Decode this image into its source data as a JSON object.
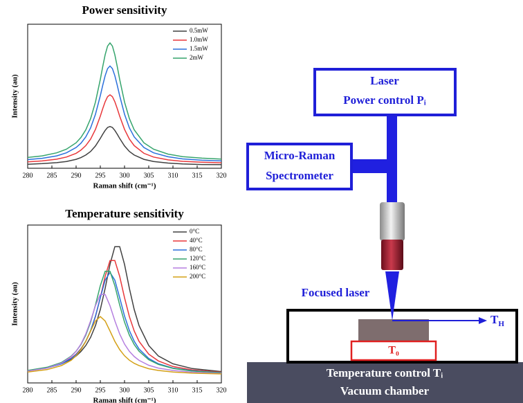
{
  "chart_data": [
    {
      "type": "line",
      "title": "Power sensitivity",
      "xlabel": "Raman shift (cm⁻¹)",
      "ylabel": "Intensity (au)",
      "x": [
        280,
        283,
        286,
        288,
        290,
        291,
        292,
        293,
        294,
        295,
        295.5,
        296,
        296.5,
        297,
        297.5,
        298,
        298.5,
        299,
        300,
        301,
        302,
        304,
        306,
        309,
        312,
        316,
        320
      ],
      "xlim": [
        280,
        320
      ],
      "xticks": [
        280,
        285,
        290,
        295,
        300,
        305,
        310,
        315,
        320
      ],
      "ylim": [
        0,
        100
      ],
      "series": [
        {
          "name": "0.5mW",
          "color": "#404040",
          "values": [
            2.8,
            3.2,
            3.9,
            4.7,
            6.2,
            7.4,
            9.2,
            11.7,
            15.5,
            20.7,
            23.6,
            26.3,
            28.3,
            29,
            28.3,
            26.3,
            23.6,
            20.7,
            15.5,
            11.7,
            9.2,
            6.2,
            4.7,
            3.6,
            3.0,
            2.6,
            2.5
          ]
        },
        {
          "name": "1.0mW",
          "color": "#e8373a",
          "values": [
            4.4,
            5.1,
            6.3,
            7.8,
            10.4,
            12.6,
            15.7,
            20.3,
            27,
            36.2,
            41.4,
            46.2,
            49.7,
            51,
            49.7,
            46.2,
            41.4,
            36.2,
            27,
            20.3,
            15.7,
            10.4,
            7.8,
            5.8,
            4.8,
            4.2,
            3.8
          ]
        },
        {
          "name": "1.5mW",
          "color": "#2a6fdb",
          "values": [
            6,
            6.9,
            8.6,
            10.7,
            14.4,
            17.4,
            21.8,
            28.1,
            37.5,
            50.4,
            57.6,
            64.3,
            69.2,
            71,
            69.2,
            64.3,
            57.6,
            50.4,
            37.5,
            28.1,
            21.8,
            14.4,
            10.7,
            8,
            6.5,
            5.6,
            5.1
          ]
        },
        {
          "name": "2mW",
          "color": "#35a46c",
          "values": [
            7.5,
            8.6,
            10.7,
            13.2,
            17.7,
            21.4,
            26.7,
            34.5,
            46,
            61.7,
            70.6,
            78.8,
            84.8,
            87,
            84.8,
            78.8,
            70.6,
            61.7,
            46,
            34.5,
            26.7,
            17.7,
            13.2,
            9.8,
            8.1,
            7,
            6.4
          ]
        }
      ]
    },
    {
      "type": "line",
      "title": "Temperature sensitivity",
      "xlabel": "Raman shift (cm⁻¹)",
      "ylabel": "Intensity (au)",
      "x": [
        280,
        284,
        287,
        289,
        290,
        291,
        292,
        293,
        294,
        295,
        296,
        297,
        298,
        299,
        300,
        301,
        302,
        303,
        305,
        307,
        310,
        314,
        320
      ],
      "xlim": [
        280,
        320
      ],
      "xticks": [
        280,
        285,
        290,
        295,
        300,
        305,
        310,
        315,
        320
      ],
      "ylim": [
        0,
        100
      ],
      "series": [
        {
          "name": "0°C",
          "color": "#404040",
          "values": [
            7.8,
            9.6,
            12.1,
            15,
            17,
            19.9,
            23.7,
            28.9,
            36.3,
            46.5,
            59.9,
            75.1,
            86.3,
            86.3,
            75.1,
            59.9,
            46.5,
            36.3,
            23.7,
            17,
            12.1,
            9.1,
            7.2
          ]
        },
        {
          "name": "40°C",
          "color": "#e8373a",
          "values": [
            7.8,
            9.7,
            12.4,
            15.7,
            18.2,
            21.7,
            26.3,
            32.9,
            42,
            54,
            67.5,
            77.5,
            77.5,
            67.5,
            54,
            42,
            32.9,
            26.3,
            18.2,
            13.9,
            10.4,
            8.2,
            6.8
          ]
        },
        {
          "name": "80°C",
          "color": "#2a6fdb",
          "values": [
            7.7,
            9.4,
            12.1,
            15.5,
            18,
            21.5,
            26.4,
            33.2,
            42.4,
            54,
            65.1,
            70,
            65.1,
            54,
            42.4,
            33.2,
            26.4,
            21.5,
            15.5,
            12.1,
            9.4,
            7.7,
            6.5
          ]
        },
        {
          "name": "120°C",
          "color": "#35a46c",
          "values": [
            7.9,
            9.9,
            13,
            17,
            20.1,
            24.3,
            30.3,
            38.5,
            49.4,
            61.6,
            70.7,
            70.7,
            61.6,
            49.4,
            38.5,
            30.3,
            24.3,
            20.1,
            14.7,
            11.7,
            9.2,
            7.5,
            6.5
          ]
        },
        {
          "name": "160°C",
          "color": "#b57fe0",
          "values": [
            7.5,
            9.4,
            12.5,
            16.7,
            20,
            24.6,
            31,
            39.4,
            48.9,
            56,
            56,
            48.9,
            39.4,
            31,
            24.6,
            20,
            16.7,
            14.3,
            11.2,
            9.4,
            7.9,
            6.8,
            6
          ]
        },
        {
          "name": "200°C",
          "color": "#d4a017",
          "values": [
            6.9,
            8.4,
            11,
            14.4,
            17.2,
            21.1,
            26.3,
            32.9,
            39.2,
            42,
            39.2,
            32.9,
            26.3,
            21.1,
            17.2,
            14.4,
            12.4,
            11,
            9,
            7.9,
            6.9,
            6.2,
            5.7
          ]
        }
      ]
    }
  ],
  "diagram": {
    "laser": [
      "Laser",
      "Power control Pᵢ"
    ],
    "spectrometer": [
      "Micro-Raman",
      "Spectrometer"
    ],
    "focused_label": "Focused laser",
    "hot": {
      "main": "T",
      "sub": "H"
    },
    "cold": "T₀",
    "base": [
      "Temperature control Tᵢ",
      "Vacuum chamber"
    ]
  }
}
